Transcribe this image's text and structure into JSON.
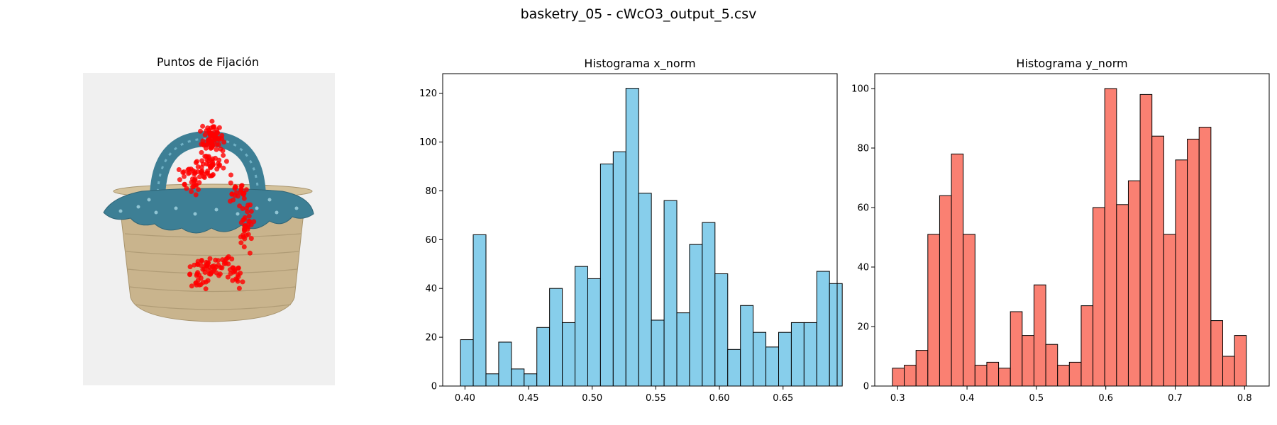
{
  "figure_title": "basketry_05 - cWcO3_output_5.csv",
  "panel_image": {
    "title": "Puntos de Fijación",
    "image_background": "#f0f0f0",
    "point_color": "#ff0000",
    "basket_colors": {
      "straw": "#c9b48d",
      "fabric": "#3d7f95"
    }
  },
  "chart_data": [
    {
      "type": "bar",
      "title": "Histograma x_norm",
      "xlabel": "",
      "ylabel": "",
      "color": "#87ceeb",
      "edgecolor": "#000000",
      "bin_start": 0.3965,
      "bin_width": 0.01,
      "values": [
        19,
        62,
        5,
        18,
        7,
        5,
        24,
        40,
        26,
        49,
        44,
        91,
        96,
        122,
        79,
        27,
        76,
        30,
        58,
        67,
        46,
        15,
        33,
        22,
        16,
        22,
        26,
        26,
        47,
        42
      ],
      "xlim": [
        0.3825,
        0.6925
      ],
      "ylim": [
        0,
        128
      ],
      "xticks": [
        0.4,
        0.45,
        0.5,
        0.55,
        0.6,
        0.65
      ],
      "xtick_labels": [
        "0.40",
        "0.45",
        "0.50",
        "0.55",
        "0.60",
        "0.65"
      ],
      "yticks": [
        0,
        20,
        40,
        60,
        80,
        100,
        120
      ],
      "ytick_labels": [
        "0",
        "20",
        "40",
        "60",
        "80",
        "100",
        "120"
      ]
    },
    {
      "type": "bar",
      "title": "Histograma y_norm",
      "xlabel": "",
      "ylabel": "",
      "color": "#fa8072",
      "edgecolor": "#000000",
      "bin_start": 0.2925,
      "bin_width": 0.017,
      "values": [
        6,
        7,
        12,
        51,
        64,
        78,
        51,
        7,
        8,
        6,
        25,
        17,
        34,
        14,
        7,
        8,
        27,
        60,
        100,
        61,
        69,
        98,
        84,
        51,
        76,
        83,
        87,
        22,
        10,
        17
      ],
      "xlim": [
        0.267,
        0.8355
      ],
      "ylim": [
        0,
        105
      ],
      "xticks": [
        0.3,
        0.4,
        0.5,
        0.6,
        0.7,
        0.8
      ],
      "xtick_labels": [
        "0.3",
        "0.4",
        "0.5",
        "0.6",
        "0.7",
        "0.8"
      ],
      "yticks": [
        0,
        20,
        40,
        60,
        80,
        100
      ],
      "ytick_labels": [
        "0",
        "20",
        "40",
        "60",
        "80",
        "100"
      ]
    }
  ]
}
